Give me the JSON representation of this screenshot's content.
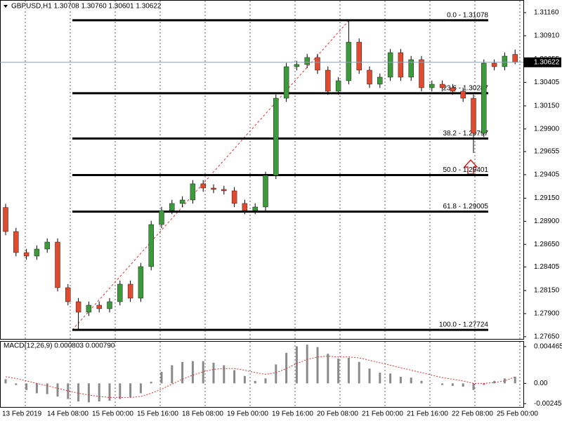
{
  "chart_data": [
    {
      "type": "candlestick",
      "title": "GBPUSD,H1  1.30708 1.30760 1.30601 1.30622",
      "x_labels": [
        "13 Feb 2019",
        "14 Feb 08:00",
        "15 Feb 00:00",
        "15 Feb 16:00",
        "18 Feb 08:00",
        "19 Feb 00:00",
        "19 Feb 16:00",
        "20 Feb 08:00",
        "21 Feb 00:00",
        "21 Feb 16:00",
        "22 Feb 08:00",
        "25 Feb 00:00"
      ],
      "ylim": [
        1.27626,
        1.31297
      ],
      "yticks": [
        {
          "value": 1.3116,
          "label": "1.31160"
        },
        {
          "value": 1.3091,
          "label": "1.30910"
        },
        1.30655,
        1.30405,
        {
          "value": 1.3015,
          "label": "1.30150"
        },
        {
          "value": 1.299,
          "label": "1.29900"
        },
        1.29655,
        1.29405,
        {
          "value": 1.2915,
          "label": "1.29150"
        },
        {
          "value": 1.289,
          "label": "1.28900"
        },
        {
          "value": 1.2865,
          "label": "1.28650"
        },
        1.28405,
        {
          "value": 1.2815,
          "label": "1.28150"
        },
        {
          "value": 1.279,
          "label": "1.27900"
        },
        {
          "value": 1.2765,
          "label": "1.27650"
        }
      ],
      "up_color": "#3c9a3c",
      "down_color": "#e04a2e",
      "open": [
        1.2905,
        1.28789,
        1.28561,
        1.28523,
        1.28599,
        1.28675,
        1.28181,
        1.28029,
        1.27915,
        1.27991,
        1.27953,
        1.28029,
        1.28219,
        1.28067,
        1.28409,
        1.28865,
        1.29017,
        1.29093,
        1.29131,
        1.29306,
        1.2926,
        1.29245,
        1.2923,
        1.29093,
        1.29017,
        1.29055,
        1.29397,
        1.30233,
        1.30575,
        1.30598,
        1.30674,
        1.30537,
        1.30309,
        1.30423,
        1.30841,
        1.30537,
        1.30385,
        1.30461,
        1.30727,
        1.30461,
        1.30651,
        1.30347,
        1.30385,
        1.30347,
        1.30309,
        1.30233,
        1.29853,
        1.30613,
        1.30575,
        1.30708
      ],
      "high": [
        1.2909,
        1.28829,
        1.28601,
        1.28639,
        1.28715,
        1.28715,
        1.28221,
        1.28069,
        1.28031,
        1.28031,
        1.28069,
        1.28259,
        1.28259,
        1.28449,
        1.28905,
        1.29057,
        1.29133,
        1.29171,
        1.29346,
        1.29346,
        1.293,
        1.29285,
        1.2927,
        1.29133,
        1.29095,
        1.29437,
        1.30273,
        1.30615,
        1.30638,
        1.30714,
        1.30714,
        1.30577,
        1.30463,
        1.31078,
        1.30881,
        1.30577,
        1.30501,
        1.30767,
        1.30767,
        1.30691,
        1.30691,
        1.30425,
        1.30425,
        1.30387,
        1.30349,
        1.30273,
        1.30653,
        1.30653,
        1.30729,
        1.3076
      ],
      "low": [
        1.28749,
        1.28521,
        1.28483,
        1.28483,
        1.28559,
        1.28141,
        1.27989,
        1.27724,
        1.27875,
        1.27913,
        1.27913,
        1.27989,
        1.28027,
        1.28027,
        1.28369,
        1.28825,
        1.28977,
        1.29053,
        1.29091,
        1.2922,
        1.29205,
        1.2919,
        1.29053,
        1.28977,
        1.28977,
        1.29015,
        1.29357,
        1.30193,
        1.30535,
        1.30558,
        1.30497,
        1.30269,
        1.30269,
        1.30383,
        1.30497,
        1.30345,
        1.30345,
        1.30421,
        1.30421,
        1.30421,
        1.30307,
        1.30307,
        1.30307,
        1.30269,
        1.30193,
        1.2964,
        1.29813,
        1.30535,
        1.30535,
        1.30601
      ],
      "close": [
        1.28789,
        1.28561,
        1.28523,
        1.28599,
        1.28675,
        1.28181,
        1.28029,
        1.27915,
        1.27991,
        1.27953,
        1.28029,
        1.28219,
        1.28067,
        1.28409,
        1.28865,
        1.29017,
        1.29093,
        1.29131,
        1.29306,
        1.2926,
        1.29245,
        1.2923,
        1.29093,
        1.29017,
        1.29055,
        1.29397,
        1.30233,
        1.30575,
        1.30598,
        1.30674,
        1.30537,
        1.30309,
        1.30423,
        1.30841,
        1.30537,
        1.30385,
        1.30461,
        1.30727,
        1.30461,
        1.30651,
        1.30347,
        1.30385,
        1.30347,
        1.30309,
        1.30233,
        1.29853,
        1.30613,
        1.30575,
        1.30689,
        1.30622
      ],
      "current_price": 1.30622,
      "fibonacci": {
        "color": "#000000",
        "trend_color": "#e03030",
        "levels": [
          {
            "price": 1.31078,
            "label": "0.0 - 1.31078"
          },
          {
            "price": 1.30287,
            "label": "23.6 - 1.30287"
          },
          {
            "price": 1.29797,
            "label": "38.2 - 1.29797"
          },
          {
            "price": 1.29401,
            "label": "50.0 - 1.29401"
          },
          {
            "price": 1.29005,
            "label": "61.8 - 1.29005"
          },
          {
            "price": 1.27724,
            "label": "100.0 - 1.27724"
          }
        ]
      }
    },
    {
      "type": "macd",
      "title": "MACD(12,26,9) 0.000803 0.000790",
      "ylim": [
        -0.002864,
        0.00514
      ],
      "yticks": [
        0.004465,
        {
          "value": 0,
          "label": "0.00"
        },
        -0.002459
      ],
      "bar_color": "#8a8a8a",
      "signal_color": "#e03030",
      "values": [
        0.0005,
        -0.0002,
        -0.0008,
        -0.0012,
        -0.0013,
        -0.0016,
        -0.0019,
        -0.0022,
        -0.0023,
        -0.0022,
        -0.0021,
        -0.0019,
        -0.0017,
        -0.0012,
        0.0002,
        0.0014,
        0.0022,
        0.0026,
        0.0027,
        0.0027,
        0.0025,
        0.0022,
        0.0016,
        0.0009,
        0.0003,
        0.0006,
        0.0023,
        0.0037,
        0.0045,
        0.0047,
        0.0044,
        0.0036,
        0.003,
        0.0031,
        0.0026,
        0.0018,
        0.0013,
        0.0012,
        0.0008,
        0.0007,
        0.0003,
        0.0,
        -0.0002,
        -0.0003,
        -0.0004,
        -0.0008,
        -0.0002,
        0.0003,
        0.0006,
        0.000803
      ],
      "signal": [
        0.0008,
        0.0006,
        0.0003,
        0.0,
        -0.0003,
        -0.0006,
        -0.0009,
        -0.0012,
        -0.0014,
        -0.0016,
        -0.0017,
        -0.0017,
        -0.0017,
        -0.0016,
        -0.0012,
        -0.0007,
        -0.0001,
        0.0005,
        0.001,
        0.0014,
        0.0017,
        0.0018,
        0.0018,
        0.0016,
        0.0013,
        0.0011,
        0.0013,
        0.0018,
        0.0024,
        0.0029,
        0.0032,
        0.0033,
        0.0032,
        0.0032,
        0.0031,
        0.0028,
        0.0025,
        0.0022,
        0.0019,
        0.0016,
        0.0013,
        0.001,
        0.0007,
        0.0005,
        0.0003,
        0.0,
        0.0,
        0.0001,
        0.0003,
        0.00079
      ]
    }
  ]
}
